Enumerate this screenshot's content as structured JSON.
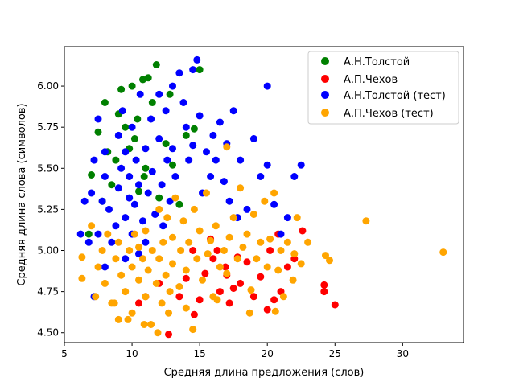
{
  "chart_data": {
    "type": "scatter",
    "title": "",
    "xlabel": "Средняя длина предложения (слов)",
    "ylabel": "Средняя длина слова (символов)",
    "xlim": [
      5.0,
      34.5
    ],
    "ylim": [
      4.44,
      6.24
    ],
    "xticks": [
      5,
      10,
      15,
      20,
      25,
      30
    ],
    "xtick_labels": [
      "5",
      "10",
      "15",
      "20",
      "25",
      "30"
    ],
    "yticks": [
      4.5,
      4.75,
      5.0,
      5.25,
      5.5,
      5.75,
      6.0
    ],
    "ytick_labels": [
      "4.50",
      "4.75",
      "5.00",
      "5.25",
      "5.50",
      "5.75",
      "6.00"
    ],
    "grid": false,
    "legend_position": "top-right",
    "series": [
      {
        "name": "А.Н.Толстой",
        "color": "#008000",
        "points": [
          [
            7.0,
            5.46
          ],
          [
            7.5,
            5.72
          ],
          [
            8.0,
            5.9
          ],
          [
            8.2,
            5.6
          ],
          [
            8.5,
            5.4
          ],
          [
            9.0,
            5.83
          ],
          [
            9.5,
            5.75
          ],
          [
            10.0,
            6.0
          ],
          [
            10.2,
            5.68
          ],
          [
            10.5,
            5.36
          ],
          [
            10.8,
            6.04
          ],
          [
            11.0,
            5.5
          ],
          [
            11.2,
            6.05
          ],
          [
            11.8,
            6.13
          ],
          [
            12.5,
            5.65
          ],
          [
            13.0,
            5.52
          ],
          [
            14.0,
            5.7
          ],
          [
            14.6,
            5.74
          ],
          [
            15.0,
            6.1
          ],
          [
            9.8,
            5.62
          ],
          [
            10.4,
            5.8
          ],
          [
            8.8,
            5.55
          ],
          [
            12.0,
            5.32
          ],
          [
            13.5,
            5.28
          ],
          [
            7.8,
            5.3
          ],
          [
            9.2,
            5.98
          ],
          [
            11.5,
            5.9
          ],
          [
            12.8,
            5.95
          ],
          [
            10.9,
            5.45
          ],
          [
            6.8,
            5.1
          ]
        ]
      },
      {
        "name": "А.П.Чехов",
        "color": "#ff0000",
        "points": [
          [
            10.5,
            4.68
          ],
          [
            11.0,
            4.72
          ],
          [
            12.0,
            4.8
          ],
          [
            12.7,
            4.49
          ],
          [
            13.5,
            4.72
          ],
          [
            14.0,
            4.83
          ],
          [
            14.6,
            4.61
          ],
          [
            15.0,
            4.7
          ],
          [
            15.4,
            4.86
          ],
          [
            16.0,
            4.95
          ],
          [
            16.5,
            4.75
          ],
          [
            17.0,
            4.85
          ],
          [
            17.2,
            4.68
          ],
          [
            17.5,
            4.77
          ],
          [
            18.0,
            4.8
          ],
          [
            18.5,
            4.93
          ],
          [
            19.0,
            4.72
          ],
          [
            19.5,
            4.84
          ],
          [
            20.0,
            4.64
          ],
          [
            20.2,
            5.0
          ],
          [
            20.5,
            4.7
          ],
          [
            20.8,
            5.1
          ],
          [
            21.0,
            4.75
          ],
          [
            21.5,
            4.9
          ],
          [
            22.0,
            4.95
          ],
          [
            22.6,
            5.12
          ],
          [
            24.2,
            4.79
          ],
          [
            24.2,
            4.75
          ],
          [
            25.0,
            4.67
          ],
          [
            16.3,
            5.0
          ],
          [
            15.8,
            5.07
          ],
          [
            17.8,
            4.96
          ],
          [
            14.5,
            5.0
          ],
          [
            16.9,
            4.9
          ]
        ]
      },
      {
        "name": "А.Н.Толстой (тест)",
        "color": "#0000ff",
        "points": [
          [
            6.2,
            5.1
          ],
          [
            6.5,
            5.3
          ],
          [
            6.8,
            5.05
          ],
          [
            7.0,
            5.35
          ],
          [
            7.2,
            5.55
          ],
          [
            7.5,
            5.8
          ],
          [
            7.5,
            5.1
          ],
          [
            7.8,
            5.3
          ],
          [
            8.0,
            5.45
          ],
          [
            8.0,
            5.6
          ],
          [
            8.3,
            5.25
          ],
          [
            8.5,
            5.05
          ],
          [
            8.8,
            5.15
          ],
          [
            9.0,
            5.7
          ],
          [
            9.0,
            5.38
          ],
          [
            9.2,
            5.5
          ],
          [
            9.3,
            5.85
          ],
          [
            9.5,
            5.2
          ],
          [
            9.5,
            5.6
          ],
          [
            9.8,
            5.32
          ],
          [
            9.8,
            5.45
          ],
          [
            10.0,
            5.1
          ],
          [
            10.0,
            5.75
          ],
          [
            10.2,
            5.28
          ],
          [
            10.3,
            5.55
          ],
          [
            10.5,
            5.4
          ],
          [
            10.6,
            5.95
          ],
          [
            10.8,
            5.18
          ],
          [
            11.0,
            5.62
          ],
          [
            11.2,
            5.35
          ],
          [
            11.4,
            5.8
          ],
          [
            11.5,
            5.48
          ],
          [
            11.7,
            5.22
          ],
          [
            12.0,
            5.95
          ],
          [
            12.0,
            5.68
          ],
          [
            12.2,
            5.4
          ],
          [
            12.3,
            5.15
          ],
          [
            12.5,
            5.85
          ],
          [
            12.6,
            5.55
          ],
          [
            12.8,
            5.3
          ],
          [
            13.0,
            6.0
          ],
          [
            13.0,
            5.62
          ],
          [
            13.2,
            5.45
          ],
          [
            13.5,
            6.08
          ],
          [
            13.8,
            5.9
          ],
          [
            14.0,
            5.75
          ],
          [
            14.2,
            5.55
          ],
          [
            14.5,
            6.1
          ],
          [
            14.5,
            5.64
          ],
          [
            14.8,
            6.16
          ],
          [
            15.0,
            5.82
          ],
          [
            15.2,
            5.35
          ],
          [
            15.5,
            5.6
          ],
          [
            15.8,
            5.45
          ],
          [
            16.0,
            5.7
          ],
          [
            16.2,
            5.55
          ],
          [
            16.5,
            5.78
          ],
          [
            16.8,
            5.42
          ],
          [
            17.0,
            5.65
          ],
          [
            17.2,
            5.3
          ],
          [
            17.5,
            5.85
          ],
          [
            17.8,
            5.2
          ],
          [
            18.0,
            5.55
          ],
          [
            18.5,
            5.25
          ],
          [
            19.0,
            5.68
          ],
          [
            19.5,
            5.45
          ],
          [
            20.0,
            6.0
          ],
          [
            20.0,
            5.52
          ],
          [
            20.5,
            5.28
          ],
          [
            21.0,
            5.1
          ],
          [
            21.5,
            5.2
          ],
          [
            22.0,
            5.45
          ],
          [
            22.5,
            5.52
          ],
          [
            11.0,
            5.05
          ],
          [
            10.5,
            4.98
          ],
          [
            9.5,
            4.95
          ],
          [
            8.0,
            4.9
          ],
          [
            7.2,
            4.72
          ]
        ]
      },
      {
        "name": "А.П.Чехов (тест)",
        "color": "#ffa500",
        "points": [
          [
            6.3,
            4.96
          ],
          [
            6.3,
            4.83
          ],
          [
            7.0,
            5.15
          ],
          [
            7.3,
            4.72
          ],
          [
            7.5,
            4.9
          ],
          [
            7.8,
            5.0
          ],
          [
            8.0,
            4.8
          ],
          [
            8.2,
            5.1
          ],
          [
            8.5,
            4.68
          ],
          [
            8.8,
            4.95
          ],
          [
            9.0,
            4.58
          ],
          [
            9.0,
            5.05
          ],
          [
            9.2,
            4.85
          ],
          [
            9.5,
            4.75
          ],
          [
            9.8,
            5.0
          ],
          [
            10.0,
            4.9
          ],
          [
            10.0,
            4.62
          ],
          [
            10.2,
            5.1
          ],
          [
            10.5,
            4.82
          ],
          [
            10.5,
            5.02
          ],
          [
            10.8,
            4.95
          ],
          [
            11.0,
            4.72
          ],
          [
            11.0,
            5.12
          ],
          [
            11.2,
            4.88
          ],
          [
            11.4,
            4.55
          ],
          [
            11.5,
            5.0
          ],
          [
            11.8,
            4.8
          ],
          [
            12.0,
            5.25
          ],
          [
            12.0,
            4.95
          ],
          [
            12.2,
            4.68
          ],
          [
            12.3,
            5.05
          ],
          [
            12.5,
            4.85
          ],
          [
            12.6,
            5.2
          ],
          [
            12.8,
            4.75
          ],
          [
            13.0,
            5.08
          ],
          [
            13.0,
            4.92
          ],
          [
            13.2,
            5.32
          ],
          [
            13.5,
            4.78
          ],
          [
            13.6,
            5.0
          ],
          [
            13.8,
            5.18
          ],
          [
            14.0,
            4.88
          ],
          [
            14.2,
            5.05
          ],
          [
            14.5,
            4.52
          ],
          [
            14.6,
            5.25
          ],
          [
            14.8,
            4.95
          ],
          [
            15.0,
            5.12
          ],
          [
            15.2,
            4.82
          ],
          [
            15.5,
            5.35
          ],
          [
            15.6,
            4.98
          ],
          [
            15.8,
            5.06
          ],
          [
            16.0,
            4.72
          ],
          [
            16.2,
            5.15
          ],
          [
            16.5,
            4.9
          ],
          [
            16.8,
            5.0
          ],
          [
            17.0,
            5.63
          ],
          [
            17.0,
            4.86
          ],
          [
            17.2,
            5.08
          ],
          [
            17.5,
            5.2
          ],
          [
            17.8,
            4.95
          ],
          [
            18.0,
            5.38
          ],
          [
            18.2,
            5.02
          ],
          [
            18.5,
            5.1
          ],
          [
            18.8,
            4.76
          ],
          [
            19.0,
            5.22
          ],
          [
            19.2,
            4.95
          ],
          [
            19.5,
            5.05
          ],
          [
            19.8,
            5.3
          ],
          [
            20.0,
            4.9
          ],
          [
            20.2,
            5.07
          ],
          [
            20.5,
            5.35
          ],
          [
            20.8,
            4.88
          ],
          [
            21.0,
            5.0
          ],
          [
            21.2,
            4.72
          ],
          [
            21.5,
            5.05
          ],
          [
            22.0,
            4.98
          ],
          [
            22.2,
            5.2
          ],
          [
            22.5,
            4.92
          ],
          [
            23.0,
            5.05
          ],
          [
            24.3,
            4.97
          ],
          [
            24.6,
            4.94
          ],
          [
            27.3,
            5.18
          ],
          [
            33.0,
            4.99
          ],
          [
            14.0,
            4.65
          ],
          [
            12.7,
            4.62
          ],
          [
            9.7,
            4.58
          ],
          [
            10.9,
            4.55
          ],
          [
            11.9,
            4.5
          ],
          [
            8.7,
            4.68
          ],
          [
            16.3,
            4.7
          ],
          [
            20.6,
            4.63
          ],
          [
            18.7,
            4.62
          ],
          [
            21.9,
            4.82
          ]
        ]
      }
    ]
  }
}
